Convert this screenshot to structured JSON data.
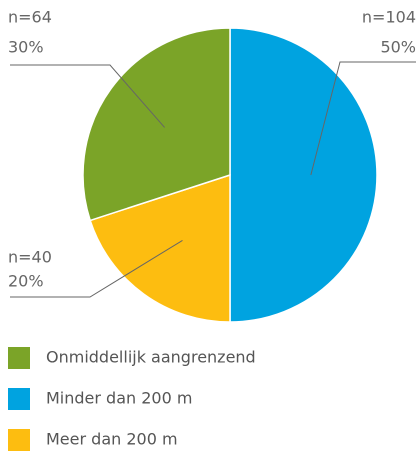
{
  "chart_data": {
    "type": "pie",
    "categories": [
      "Minder dan 200 m",
      "Meer dan 200 m",
      "Onmiddellijk aangrenzend"
    ],
    "values": [
      50,
      20,
      30
    ],
    "value_labels": [
      "50%",
      "20%",
      "30%"
    ],
    "counts": [
      104,
      40,
      64
    ],
    "count_labels": [
      "n=104",
      "n=40",
      "n=64"
    ],
    "colors": [
      "#00a3e0",
      "#fdbd10",
      "#7ba428"
    ],
    "legend_order": [
      2,
      0,
      1
    ]
  }
}
